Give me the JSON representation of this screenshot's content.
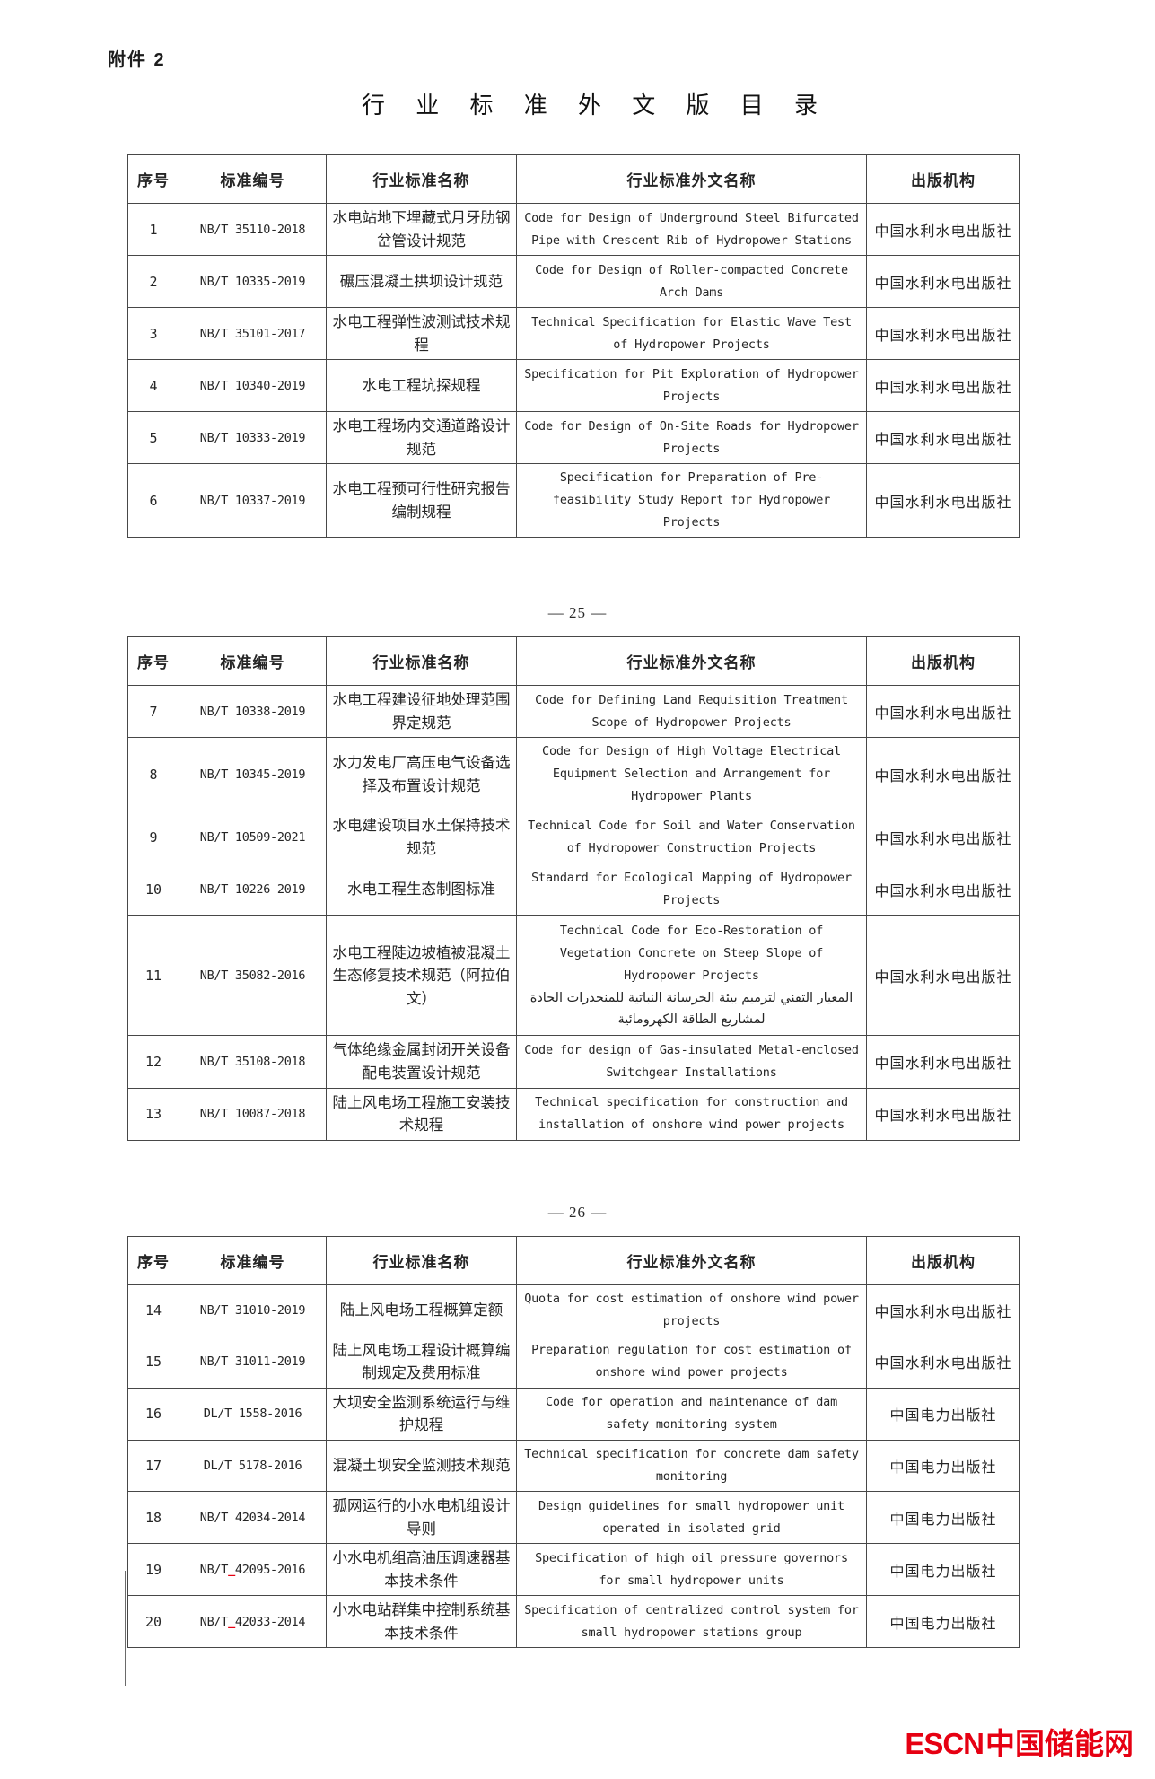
{
  "page": {
    "attachment_label": "附件 2",
    "title": "行 业 标 准 外 文 版 目 录",
    "page_number_25": "— 25 —",
    "page_number_26": "— 26 —"
  },
  "logo": {
    "en": "ESCN",
    "zh": "中国储能网",
    "color": "#e60012"
  },
  "headers": {
    "no": "序号",
    "code": "标准编号",
    "name_zh": "行业标准名称",
    "name_en": "行业标准外文名称",
    "publisher": "出版机构"
  },
  "tables": [
    {
      "rows": [
        {
          "no": "1",
          "code": "NB/T 35110-2018",
          "name_zh": "水电站地下埋藏式月牙肋钢岔管设计规范",
          "name_en": "Code for Design of Underground Steel Bifurcated Pipe with Crescent Rib of Hydropower Stations",
          "publisher": "中国水利水电出版社"
        },
        {
          "no": "2",
          "code": "NB/T 10335-2019",
          "name_zh": "碾压混凝土拱坝设计规范",
          "name_en": "Code for Design of Roller-compacted Concrete Arch Dams",
          "publisher": "中国水利水电出版社"
        },
        {
          "no": "3",
          "code": "NB/T 35101-2017",
          "name_zh": "水电工程弹性波测试技术规程",
          "name_en": "Technical Specification for Elastic Wave Test of Hydropower Projects",
          "publisher": "中国水利水电出版社"
        },
        {
          "no": "4",
          "code": "NB/T 10340-2019",
          "name_zh": "水电工程坑探规程",
          "name_en": "Specification for Pit Exploration of Hydropower Projects",
          "publisher": "中国水利水电出版社"
        },
        {
          "no": "5",
          "code": "NB/T 10333-2019",
          "name_zh": "水电工程场内交通道路设计规范",
          "name_en": "Code for Design of On-Site Roads for Hydropower Projects",
          "publisher": "中国水利水电出版社"
        },
        {
          "no": "6",
          "code": "NB/T 10337-2019",
          "name_zh": "水电工程预可行性研究报告编制规程",
          "name_en": "Specification for Preparation of Pre-feasibility Study Report for Hydropower Projects",
          "publisher": "中国水利水电出版社"
        }
      ]
    },
    {
      "rows": [
        {
          "no": "7",
          "code": "NB/T 10338-2019",
          "name_zh": "水电工程建设征地处理范围界定规范",
          "name_en": "Code for Defining Land Requisition Treatment Scope of Hydropower Projects",
          "publisher": "中国水利水电出版社"
        },
        {
          "no": "8",
          "code": "NB/T 10345-2019",
          "name_zh": "水力发电厂高压电气设备选择及布置设计规范",
          "name_en": "Code for Design of High Voltage Electrical Equipment Selection and Arrangement for Hydropower Plants",
          "publisher": "中国水利水电出版社"
        },
        {
          "no": "9",
          "code": "NB/T 10509-2021",
          "name_zh": "水电建设项目水土保持技术规范",
          "name_en": "Technical Code for Soil and Water Conservation of Hydropower Construction Projects",
          "publisher": "中国水利水电出版社"
        },
        {
          "no": "10",
          "code": "NB/T 10226—2019",
          "name_zh": "水电工程生态制图标准",
          "name_en": "Standard for Ecological Mapping of Hydropower Projects",
          "publisher": "中国水利水电出版社"
        },
        {
          "no": "11",
          "code": "NB/T 35082-2016",
          "name_zh": "水电工程陡边坡植被混凝土生态修复技术规范（阿拉伯文）",
          "name_en": "Technical Code for Eco-Restoration of Vegetation Concrete on Steep Slope of Hydropower Projects",
          "name_ar": "المعيار التقني لترميم بيئة الخرسانة النباتية للمنحدرات الحادة لمشاريع الطاقة الكهرومائية",
          "tall": true,
          "publisher": "中国水利水电出版社"
        },
        {
          "no": "12",
          "code": "NB/T 35108-2018",
          "name_zh": "气体绝缘金属封闭开关设备配电装置设计规范",
          "name_en": "Code for design of Gas-insulated Metal-enclosed Switchgear Installations",
          "publisher": "中国水利水电出版社"
        },
        {
          "no": "13",
          "code": "NB/T 10087-2018",
          "name_zh": "陆上风电场工程施工安装技术规程",
          "name_en": "Technical specification for construction and installation of onshore wind power projects",
          "publisher": "中国水利水电出版社"
        }
      ]
    },
    {
      "rows": [
        {
          "no": "14",
          "code": "NB/T 31010-2019",
          "name_zh": "陆上风电场工程概算定额",
          "name_en": "Quota for cost estimation of onshore wind power projects",
          "publisher": "中国水利水电出版社"
        },
        {
          "no": "15",
          "code": "NB/T 31011-2019",
          "name_zh": "陆上风电场工程设计概算编制规定及费用标准",
          "name_en": "Preparation regulation for cost estimation of onshore wind power projects",
          "publisher": "中国水利水电出版社"
        },
        {
          "no": "16",
          "code": "DL/T 1558-2016",
          "name_zh": "大坝安全监测系统运行与维护规程",
          "name_en": "Code for operation and maintenance of dam safety monitoring system",
          "publisher": "中国电力出版社"
        },
        {
          "no": "17",
          "code": "DL/T 5178-2016",
          "name_zh": "混凝土坝安全监测技术规范",
          "name_en": "Technical specification for concrete dam safety monitoring",
          "publisher": "中国电力出版社"
        },
        {
          "no": "18",
          "code": "NB/T 42034-2014",
          "name_zh": "孤网运行的小水电机组设计导则",
          "name_en": "Design guidelines for small hydropower unit operated in isolated grid",
          "publisher": "中国电力出版社"
        },
        {
          "no": "19",
          "code": "NB/T 42095-2016",
          "red_underscore": true,
          "name_zh": "小水电机组高油压调速器基本技术条件",
          "name_en": "Specification of high oil pressure governors for small hydropower units",
          "publisher": "中国电力出版社"
        },
        {
          "no": "20",
          "code": "NB/T 42033-2014",
          "red_underscore": true,
          "name_zh": "小水电站群集中控制系统基本技术条件",
          "name_en": "Specification of centralized control system for small hydropower stations group",
          "publisher": "中国电力出版社"
        }
      ]
    }
  ]
}
